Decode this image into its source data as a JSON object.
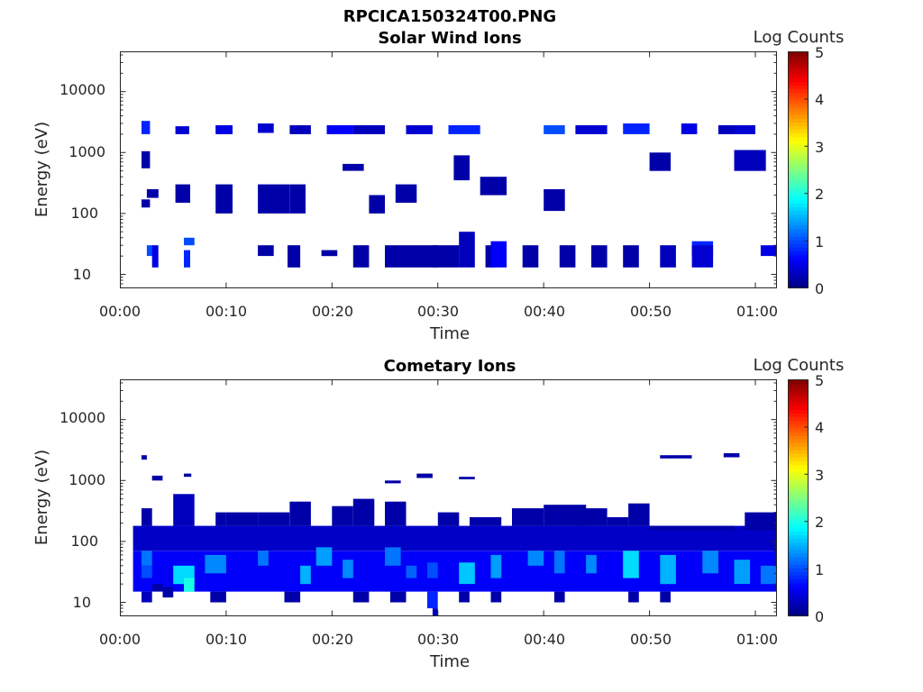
{
  "figure": {
    "suptitle": "RPCICA150324T00.PNG"
  },
  "colors": {
    "colormap": [
      "#00007f",
      "#0000ff",
      "#007fff",
      "#00ffff",
      "#7fff7f",
      "#ffff00",
      "#ff7f00",
      "#ff0000",
      "#7f0000"
    ],
    "axis": "#262626"
  },
  "chart_data": [
    {
      "type": "heatmap",
      "title": "Solar Wind Ions",
      "xlabel": "Time",
      "ylabel": "Energy (eV)",
      "colorbar_label": "Log Counts",
      "color_range": [
        0,
        5
      ],
      "colorbar_ticks": [
        "0",
        "1",
        "2",
        "3",
        "4",
        "5"
      ],
      "x_unit": "minutes",
      "xlim": [
        0,
        62
      ],
      "x_ticks": [
        "00:00",
        "00:10",
        "00:20",
        "00:30",
        "00:40",
        "00:50",
        "01:00"
      ],
      "y_scale": "log",
      "ylim": [
        6,
        45000
      ],
      "y_ticks": [
        "10",
        "100",
        "1000",
        "10000"
      ],
      "cells": [
        [
          2,
          2.8,
          2000,
          3300,
          0.8
        ],
        [
          2,
          2.8,
          550,
          1050,
          0.2
        ],
        [
          2,
          2.8,
          125,
          170,
          0.2
        ],
        [
          2.5,
          3.2,
          20,
          30,
          1.0
        ],
        [
          3,
          3.6,
          13,
          30,
          0.5
        ],
        [
          2.5,
          3.6,
          180,
          250,
          0.2
        ],
        [
          5.2,
          6.5,
          2000,
          2700,
          0.4
        ],
        [
          6,
          7,
          30,
          40,
          1.0
        ],
        [
          6,
          6.6,
          13,
          25,
          0.8
        ],
        [
          5.2,
          6.6,
          150,
          300,
          0.2
        ],
        [
          9,
          10.6,
          2000,
          2800,
          0.5
        ],
        [
          9,
          10.6,
          100,
          300,
          0.2
        ],
        [
          13,
          14.5,
          2100,
          3000,
          0.4
        ],
        [
          13,
          14.5,
          20,
          30,
          0.2
        ],
        [
          13,
          16,
          100,
          300,
          0.2
        ],
        [
          15.8,
          17,
          13,
          30,
          0.2
        ],
        [
          16,
          18,
          2000,
          2800,
          0.3
        ],
        [
          16,
          17.5,
          100,
          300,
          0.2
        ],
        [
          19,
          20.5,
          20,
          25,
          0.2
        ],
        [
          19.5,
          22,
          2000,
          2800,
          0.6
        ],
        [
          21,
          23,
          500,
          650,
          0.2
        ],
        [
          22,
          23.5,
          13,
          30,
          0.2
        ],
        [
          22,
          25,
          2000,
          2800,
          0.3
        ],
        [
          23.5,
          25,
          100,
          200,
          0.2
        ],
        [
          25,
          30,
          13,
          30,
          0.2
        ],
        [
          27,
          29.5,
          2000,
          2800,
          0.4
        ],
        [
          26,
          28,
          150,
          300,
          0.2
        ],
        [
          29.5,
          32,
          13,
          30,
          0.2
        ],
        [
          31,
          34,
          2000,
          2800,
          0.8
        ],
        [
          31.5,
          33,
          350,
          900,
          0.2
        ],
        [
          32,
          33.5,
          13,
          50,
          0.3
        ],
        [
          34.5,
          35.5,
          13,
          30,
          0.2
        ],
        [
          35,
          36.5,
          13,
          35,
          0.6
        ],
        [
          34,
          36.5,
          200,
          400,
          0.2
        ],
        [
          38,
          39.5,
          13,
          30,
          0.2
        ],
        [
          40,
          42,
          2000,
          2800,
          1.0
        ],
        [
          40,
          42,
          110,
          250,
          0.2
        ],
        [
          41.5,
          43,
          13,
          30,
          0.2
        ],
        [
          43,
          46,
          2000,
          2800,
          0.4
        ],
        [
          44.5,
          46,
          13,
          30,
          0.2
        ],
        [
          47.5,
          50,
          2000,
          3000,
          0.8
        ],
        [
          47.5,
          49,
          13,
          30,
          0.2
        ],
        [
          50,
          52,
          500,
          1000,
          0.2
        ],
        [
          51,
          52.5,
          13,
          30,
          0.3
        ],
        [
          53,
          54.5,
          2000,
          3000,
          0.5
        ],
        [
          54,
          56,
          20,
          35,
          0.8
        ],
        [
          54,
          56,
          13,
          30,
          0.4
        ],
        [
          56.5,
          58,
          2000,
          2800,
          0.3
        ],
        [
          58,
          60,
          2000,
          2800,
          0.4
        ],
        [
          58,
          61,
          500,
          1100,
          0.3
        ],
        [
          60.5,
          62,
          20,
          30,
          0.5
        ]
      ]
    },
    {
      "type": "heatmap",
      "title": "Cometary Ions",
      "xlabel": "Time",
      "ylabel": "Energy (eV)",
      "colorbar_label": "Log Counts",
      "color_range": [
        0,
        5
      ],
      "colorbar_ticks": [
        "0",
        "1",
        "2",
        "3",
        "4",
        "5"
      ],
      "x_unit": "minutes",
      "xlim": [
        0,
        62
      ],
      "x_ticks": [
        "00:00",
        "00:10",
        "00:20",
        "00:30",
        "00:40",
        "00:50",
        "01:00"
      ],
      "y_scale": "log",
      "ylim": [
        6,
        45000
      ],
      "y_ticks": [
        "10",
        "100",
        "1000",
        "10000"
      ],
      "cells": [
        [
          1.2,
          62,
          70,
          180,
          0.35
        ],
        [
          1.2,
          62,
          15,
          70,
          0.6
        ],
        [
          2,
          3,
          40,
          70,
          1.2
        ],
        [
          2,
          3,
          25,
          40,
          1.0
        ],
        [
          5,
          7,
          20,
          40,
          1.7
        ],
        [
          6,
          7,
          15,
          25,
          2.0
        ],
        [
          8,
          10,
          30,
          60,
          1.3
        ],
        [
          13,
          14,
          40,
          70,
          1.2
        ],
        [
          17,
          18,
          20,
          40,
          1.5
        ],
        [
          18.5,
          20,
          40,
          80,
          1.4
        ],
        [
          21,
          22,
          25,
          50,
          1.3
        ],
        [
          25,
          26.5,
          40,
          80,
          1.2
        ],
        [
          27,
          28,
          25,
          40,
          1.1
        ],
        [
          29,
          30,
          25,
          45,
          1.0
        ],
        [
          32,
          33.5,
          20,
          45,
          1.6
        ],
        [
          35,
          36,
          25,
          60,
          1.4
        ],
        [
          38.5,
          40,
          40,
          70,
          1.3
        ],
        [
          41,
          42,
          30,
          70,
          1.2
        ],
        [
          44,
          45,
          30,
          60,
          1.3
        ],
        [
          47.5,
          49,
          25,
          70,
          1.7
        ],
        [
          51,
          52.5,
          20,
          60,
          1.5
        ],
        [
          55,
          56.5,
          30,
          70,
          1.3
        ],
        [
          58,
          59.5,
          20,
          50,
          1.4
        ],
        [
          60.5,
          62,
          20,
          40,
          1.2
        ],
        [
          2,
          3,
          10,
          15,
          0.3
        ],
        [
          3,
          4,
          15,
          20,
          0.2
        ],
        [
          4,
          5,
          12,
          18,
          0.2
        ],
        [
          8.5,
          10,
          10,
          15,
          0.2
        ],
        [
          15.5,
          17,
          10,
          15,
          0.2
        ],
        [
          22,
          23.5,
          10,
          15,
          0.2
        ],
        [
          25.5,
          27,
          10,
          15,
          0.2
        ],
        [
          29,
          30,
          8,
          15,
          0.8
        ],
        [
          29.5,
          30,
          6,
          8,
          0.3
        ],
        [
          32,
          33,
          10,
          15,
          0.2
        ],
        [
          35,
          36,
          10,
          15,
          0.2
        ],
        [
          41,
          42,
          10,
          15,
          0.2
        ],
        [
          48,
          49,
          10,
          15,
          0.2
        ],
        [
          51,
          52,
          10,
          15,
          0.2
        ],
        [
          2,
          3,
          180,
          350,
          0.2
        ],
        [
          5,
          7,
          180,
          600,
          0.3
        ],
        [
          9,
          10,
          180,
          300,
          0.2
        ],
        [
          10,
          13,
          180,
          300,
          0.2
        ],
        [
          13,
          16,
          180,
          300,
          0.2
        ],
        [
          16,
          18,
          180,
          450,
          0.2
        ],
        [
          20,
          22,
          180,
          380,
          0.2
        ],
        [
          22,
          24,
          180,
          500,
          0.2
        ],
        [
          25,
          27,
          180,
          450,
          0.2
        ],
        [
          30,
          32,
          180,
          300,
          0.2
        ],
        [
          33,
          36,
          180,
          250,
          0.2
        ],
        [
          37,
          40,
          180,
          350,
          0.2
        ],
        [
          40,
          44,
          180,
          400,
          0.2
        ],
        [
          43,
          46,
          180,
          350,
          0.2
        ],
        [
          46,
          48,
          180,
          250,
          0.2
        ],
        [
          48,
          50,
          180,
          420,
          0.2
        ],
        [
          50,
          58,
          150,
          180,
          0.2
        ],
        [
          59,
          62,
          150,
          300,
          0.2
        ],
        [
          3,
          4,
          1000,
          1200,
          0.2
        ],
        [
          2,
          2.5,
          2200,
          2600,
          0.2
        ],
        [
          6,
          6.7,
          1150,
          1300,
          0.2
        ],
        [
          25,
          26.5,
          900,
          1000,
          0.2
        ],
        [
          28,
          29.5,
          1100,
          1300,
          0.2
        ],
        [
          32,
          33.5,
          1050,
          1150,
          0.2
        ],
        [
          51,
          54,
          2300,
          2600,
          0.2
        ],
        [
          57,
          58.5,
          2400,
          2800,
          0.2
        ]
      ]
    }
  ]
}
